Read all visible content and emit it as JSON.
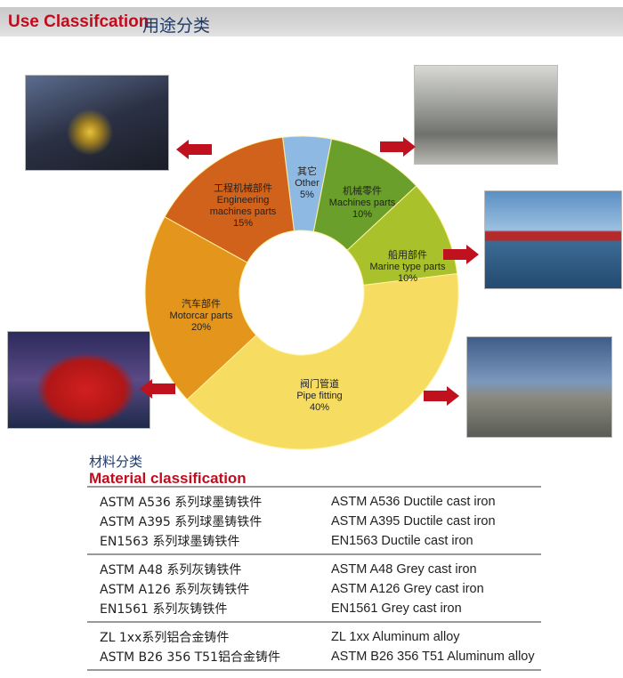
{
  "header": {
    "title_en": "Use Classifcation",
    "title_zh": "用途分类"
  },
  "chart_data": {
    "type": "pie",
    "style": "donut",
    "start": "top, clockwise",
    "slices": [
      {
        "label_zh": "其它",
        "label_en": "Other",
        "value": 5,
        "pct": "5%",
        "color": "#8db9e2"
      },
      {
        "label_zh": "机械零件",
        "label_en": "Machines parts",
        "value": 10,
        "pct": "10%",
        "color": "#6a9f2b"
      },
      {
        "label_zh": "船用部件",
        "label_en": "Marine type parts",
        "value": 10,
        "pct": "10%",
        "color": "#a9c22b"
      },
      {
        "label_zh": "阀门管道",
        "label_en": "Pipe fitting",
        "value": 40,
        "pct": "40%",
        "color": "#f7dc62"
      },
      {
        "label_zh": "汽车部件",
        "label_en": "Motorcar parts",
        "value": 20,
        "pct": "20%",
        "color": "#e3951c"
      },
      {
        "label_zh": "工程机械部件",
        "label_en": "Engineering machines parts",
        "label_en_lines": [
          "Engineering",
          "machines parts"
        ],
        "value": 15,
        "pct": "15%",
        "color": "#d1621b"
      }
    ]
  },
  "photos": [
    "mining-machinery-photo",
    "factory-workshop-photo",
    "cargo-ship-photo",
    "bus-photo",
    "refinery-photo"
  ],
  "arrow_color": "#c0111f",
  "materials": {
    "title_zh": "材料分类",
    "title_en": "Material classification",
    "groups": [
      [
        [
          "ASTM A536 系列球墨铸铁件",
          "ASTM A536 Ductile cast iron"
        ],
        [
          "ASTM A395 系列球墨铸铁件",
          "ASTM A395 Ductile cast iron"
        ],
        [
          "EN1563  系列球墨铸铁件",
          "EN1563  Ductile cast iron"
        ]
      ],
      [
        [
          "ASTM A48  系列灰铸铁件",
          "ASTM A48 Grey cast iron"
        ],
        [
          "ASTM A126  系列灰铸铁件",
          "ASTM A126 Grey cast iron"
        ],
        [
          "EN1561  系列灰铸铁件",
          "EN1561 Grey cast iron"
        ]
      ],
      [
        [
          "ZL 1xx系列铝合金铸件",
          "ZL 1xx Aluminum alloy"
        ],
        [
          "ASTM B26 356 T51铝合金铸件",
          "ASTM B26 356 T51 Aluminum alloy"
        ]
      ]
    ]
  }
}
